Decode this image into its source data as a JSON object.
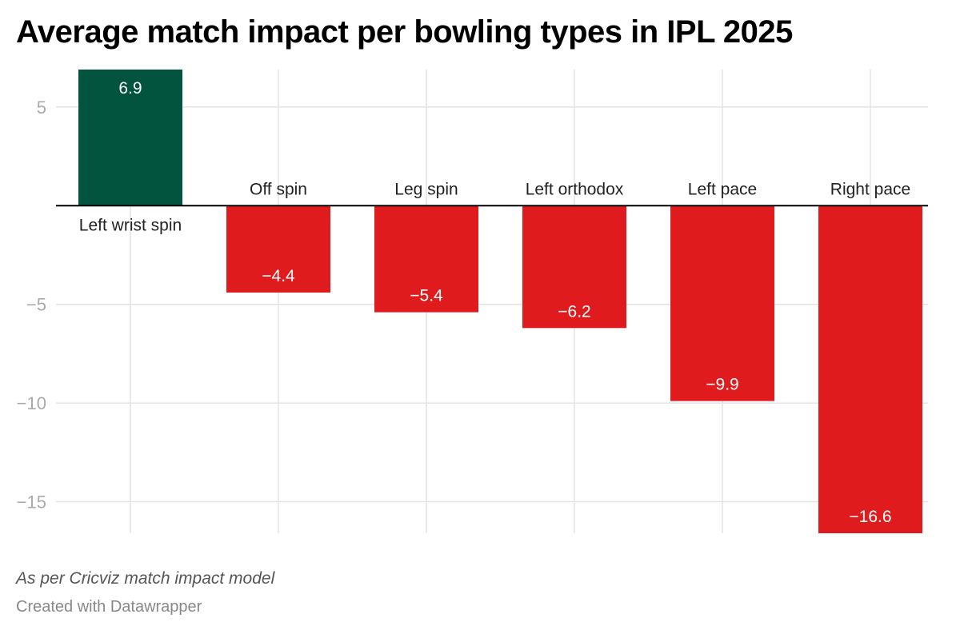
{
  "chart_data": {
    "type": "bar",
    "title": "Average match impact per bowling types in IPL 2025",
    "xlabel": "",
    "ylabel": "",
    "categories": [
      "Left wrist spin",
      "Off spin",
      "Leg spin",
      "Left orthodox",
      "Left pace",
      "Right pace"
    ],
    "values": [
      6.9,
      -4.4,
      -5.4,
      -6.2,
      -9.9,
      -16.6
    ],
    "value_labels": [
      "6.9",
      "−4.4",
      "−5.4",
      "−6.2",
      "−9.9",
      "−16.6"
    ],
    "ylim": [
      -16.6,
      6.9
    ],
    "yticks": [
      5,
      -5,
      -10,
      -15
    ],
    "ytick_labels": [
      "5",
      "−5",
      "−10",
      "−15"
    ],
    "grid": true,
    "legend": "none",
    "colors": {
      "positive": "#03543f",
      "negative": "#e01b1e"
    }
  },
  "footer": {
    "note": "As per Cricviz match impact model",
    "credit": "Created with Datawrapper"
  }
}
